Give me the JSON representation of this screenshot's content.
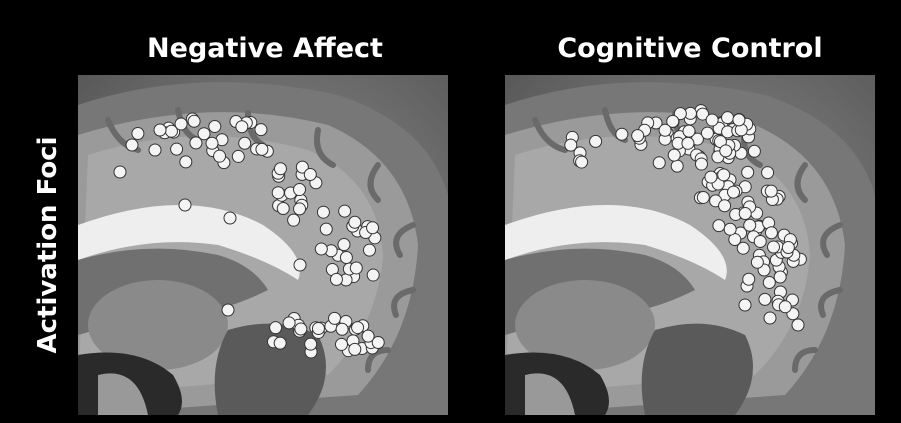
{
  "panels": [
    {
      "title": "Negative Affect"
    },
    {
      "title": "Cognitive Control"
    }
  ],
  "side_label": "Activation Foci"
}
